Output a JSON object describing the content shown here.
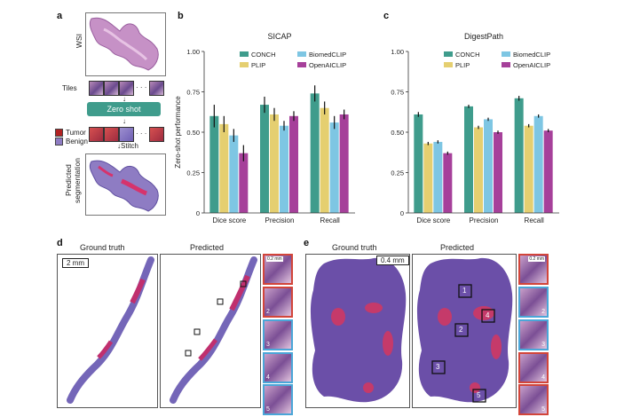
{
  "panels": {
    "a": {
      "label": "a",
      "wsi_label": "WSI",
      "tiles_label": "Tiles",
      "zero_shot_label": "Zero shot",
      "ellipsis": "· · ·",
      "legend": [
        {
          "name": "Tumor",
          "color": "#b22222"
        },
        {
          "name": "Benign",
          "color": "#8e7cc3"
        }
      ],
      "stitch_label": "Stitch",
      "predicted_label_1": "Predicted",
      "predicted_label_2": "segmentation"
    },
    "b": {
      "label": "b"
    },
    "c": {
      "label": "c"
    },
    "d": {
      "label": "d",
      "ground_truth": "Ground truth",
      "predicted": "Predicted",
      "scale": "2 mm",
      "thumb_scale": "0.2 mm",
      "numbers": [
        "1",
        "2",
        "3",
        "4",
        "5"
      ]
    },
    "e": {
      "label": "e",
      "ground_truth": "Ground truth",
      "predicted": "Predicted",
      "scale": "0.4 mm",
      "thumb_scale": "0.2 mm",
      "numbers": [
        "1",
        "2",
        "3",
        "4",
        "5"
      ]
    }
  },
  "colors": {
    "CONCH": "#3f9c8c",
    "PLIP": "#e5cf70",
    "BiomedCLIP": "#7ec6e3",
    "OpenAICLIP": "#a6409a"
  },
  "chart_data": [
    {
      "type": "bar",
      "title": "SICAP",
      "ylabel": "Zero-shot performance",
      "xlabel": "",
      "ylim": [
        0,
        1
      ],
      "yticks": [
        "0",
        "0.25",
        "0.50",
        "0.75",
        "1.00"
      ],
      "categories": [
        "Dice score",
        "Precision",
        "Recall"
      ],
      "series": [
        {
          "name": "CONCH",
          "values": [
            0.6,
            0.67,
            0.74
          ],
          "err": [
            0.07,
            0.05,
            0.05
          ]
        },
        {
          "name": "PLIP",
          "values": [
            0.55,
            0.61,
            0.65
          ],
          "err": [
            0.05,
            0.04,
            0.04
          ]
        },
        {
          "name": "BiomedCLIP",
          "values": [
            0.48,
            0.54,
            0.56
          ],
          "err": [
            0.04,
            0.03,
            0.04
          ]
        },
        {
          "name": "OpenAICLIP",
          "values": [
            0.37,
            0.6,
            0.61
          ],
          "err": [
            0.05,
            0.03,
            0.03
          ]
        }
      ],
      "legend_position": "top"
    },
    {
      "type": "bar",
      "title": "DigestPath",
      "ylabel": "",
      "xlabel": "",
      "ylim": [
        0,
        1
      ],
      "yticks": [
        "0",
        "0.25",
        "0.50",
        "0.75",
        "1.00"
      ],
      "categories": [
        "Dice score",
        "Precision",
        "Recall"
      ],
      "series": [
        {
          "name": "CONCH",
          "values": [
            0.61,
            0.66,
            0.71
          ],
          "err": [
            0.015,
            0.01,
            0.015
          ]
        },
        {
          "name": "PLIP",
          "values": [
            0.43,
            0.53,
            0.54
          ],
          "err": [
            0.01,
            0.01,
            0.01
          ]
        },
        {
          "name": "BiomedCLIP",
          "values": [
            0.44,
            0.58,
            0.6
          ],
          "err": [
            0.01,
            0.01,
            0.01
          ]
        },
        {
          "name": "OpenAICLIP",
          "values": [
            0.37,
            0.5,
            0.51
          ],
          "err": [
            0.01,
            0.01,
            0.01
          ]
        }
      ],
      "legend_position": "top"
    }
  ]
}
